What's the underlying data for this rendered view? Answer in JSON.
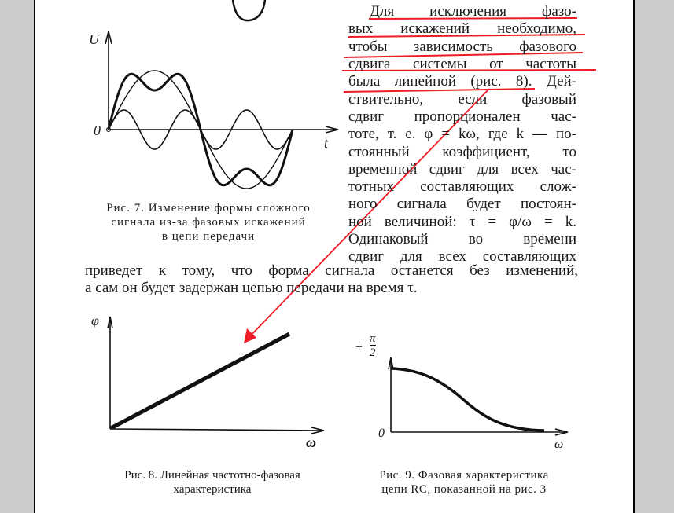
{
  "text_column": [
    "Для исключения фазо-",
    "вых искажений необходимо,",
    "чтобы зависимость фазового",
    "сдвига системы от частоты",
    "была линейной (рис. 8). Дей-",
    "ствительно, если фазовый",
    "сдвиг пропорционален час-",
    "тоте, т. е. φ = kω, где k — по-",
    "стоянный коэффициент, то",
    "временной сдвиг для всех час-",
    "тотных составляющих слож-",
    "ного сигнала будет постоян-",
    "ной величиной: τ = φ/ω = k.",
    "Одинаковый во времени",
    "сдвиг для всех составляющих"
  ],
  "full_lines": [
    "приведет к тому, что форма сигнала останется без изменений,",
    "а сам он будет задержан цепью передачи на время τ."
  ],
  "figure7": {
    "y_label": "U",
    "origin_label": "0",
    "x_label": "t",
    "caption": [
      "Рис. 7. Изменение формы сложного",
      "сигнала из-за фазовых искажений",
      "в цепи передачи"
    ]
  },
  "figure8": {
    "y_label": "φ",
    "x_label": "ω",
    "caption": [
      "Рис. 8. Линейная частотно-фазовая",
      "характеристика"
    ]
  },
  "figure9": {
    "y_label_sign": "+",
    "y_label_num": "π",
    "y_label_den": "2",
    "origin_label": "0",
    "x_label": "ω",
    "caption": [
      "Рис. 9. Фазовая характеристика",
      "цепи RC, показанной на рис. 3"
    ]
  },
  "annotation_color": "#ee1c25"
}
